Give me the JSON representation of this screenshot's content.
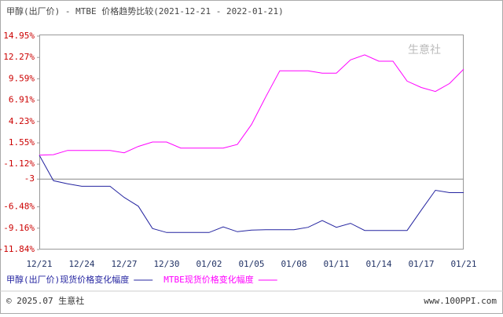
{
  "chart_data": {
    "type": "line",
    "title": "甲醇(出厂价) - MTBE 价格趋势比较(2021-12-21 - 2022-01-21)",
    "watermark": "生意社",
    "categories": [
      "12/21",
      null,
      null,
      "12/24",
      null,
      null,
      "12/27",
      null,
      null,
      "12/30",
      null,
      null,
      "01/02",
      null,
      null,
      "01/05",
      null,
      null,
      "01/08",
      null,
      null,
      "01/11",
      null,
      null,
      "01/14",
      null,
      null,
      "01/17",
      null,
      null,
      "01/21"
    ],
    "series": [
      {
        "name": "甲醇(出厂价)现货价格变化幅度",
        "color": "#2424a0",
        "values": [
          0,
          -3.2,
          -3.6,
          -3.9,
          -3.9,
          -3.9,
          -5.3,
          -6.4,
          -9.2,
          -9.7,
          -9.7,
          -9.7,
          -9.7,
          -9.0,
          -9.6,
          -9.4,
          -9.35,
          -9.35,
          -9.35,
          -9.05,
          -8.2,
          -9.05,
          -8.55,
          -9.45,
          -9.45,
          -9.45,
          -9.45,
          -6.9,
          -4.4,
          -4.7,
          -4.7
        ]
      },
      {
        "name": "MTBE现货价格变化幅度",
        "color": "#ff00ff",
        "values": [
          0,
          0.07,
          0.6,
          0.6,
          0.6,
          0.6,
          0.3,
          1.1,
          1.65,
          1.65,
          0.9,
          0.9,
          0.9,
          0.9,
          1.35,
          3.85,
          7.3,
          10.6,
          10.6,
          10.6,
          10.3,
          10.3,
          11.97,
          12.6,
          11.8,
          11.8,
          9.3,
          8.5,
          8.0,
          9.0,
          10.8
        ]
      }
    ],
    "ylim": [
      -11.84,
      14.95
    ],
    "yticks": [
      {
        "value": 14.95,
        "label": "14.95%"
      },
      {
        "value": 12.27,
        "label": "12.27%"
      },
      {
        "value": 9.59,
        "label": "9.59%"
      },
      {
        "value": 6.91,
        "label": "6.91%"
      },
      {
        "value": 4.23,
        "label": "4.23%"
      },
      {
        "value": 1.55,
        "label": "1.55%"
      },
      {
        "value": -1.12,
        "label": "-1.12%"
      },
      -3,
      {
        "value": -6.48,
        "label": "-6.48%"
      },
      {
        "value": -9.16,
        "label": "-9.16%"
      },
      {
        "value": -11.84,
        "label": "-11.84%"
      }
    ],
    "footer_left": "© 2025.07 生意社",
    "footer_right": "www.100PPI.com"
  }
}
